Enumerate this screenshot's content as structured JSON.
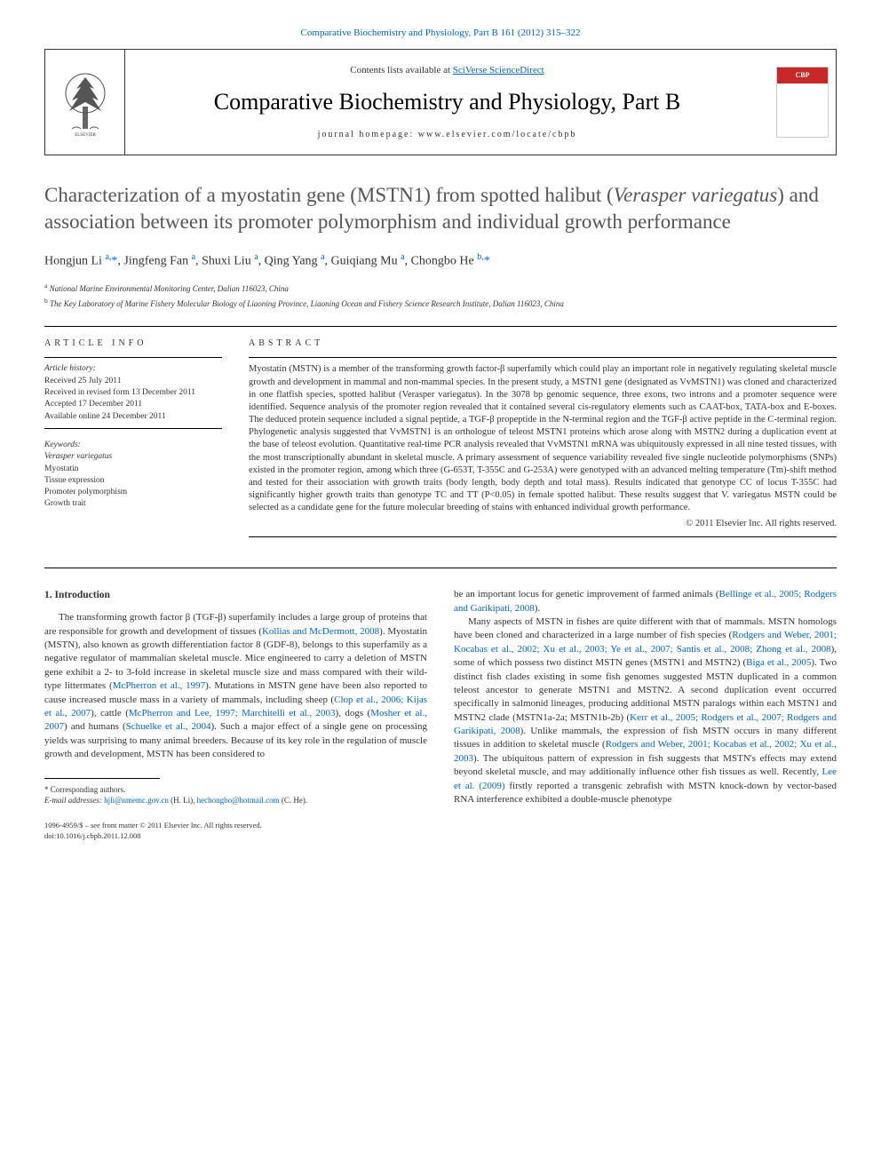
{
  "header": {
    "citation": "Comparative Biochemistry and Physiology, Part B 161 (2012) 315–322",
    "contentsLine": "Contents lists available at ",
    "contentsLink": "SciVerse ScienceDirect",
    "journalTitle": "Comparative Biochemistry and Physiology, Part B",
    "homepage": "journal homepage: www.elsevier.com/locate/cbpb",
    "coverLabel": "CBP"
  },
  "article": {
    "titlePre": "Characterization of a myostatin gene (MSTN1) from spotted halibut (",
    "titleItalic": "Verasper variegatus",
    "titlePost": ") and association between its promoter polymorphism and individual growth performance",
    "authorsHtml": "Hongjun Li <sup>a,</sup><span class='star'>*</span>, Jingfeng Fan <sup>a</sup>, Shuxi Liu <sup>a</sup>, Qing Yang <sup>a</sup>, Guiqiang Mu <sup>a</sup>, Chongbo He <sup>b,</sup><span class='star'>*</span>",
    "affiliations": [
      {
        "sup": "a",
        "text": "National Marine Environmental Monitoring Center, Dalian 116023, China"
      },
      {
        "sup": "b",
        "text": "The Key Laboratory of Marine Fishery Molecular Biology of Liaoning Province, Liaoning Ocean and Fishery Science Research Institute, Dalian 116023, China"
      }
    ]
  },
  "info": {
    "infoLabel": "ARTICLE INFO",
    "abstractLabel": "ABSTRACT",
    "historyLabel": "Article history:",
    "history": [
      "Received 25 July 2011",
      "Received in revised form 13 December 2011",
      "Accepted 17 December 2011",
      "Available online 24 December 2011"
    ],
    "keywordsLabel": "Keywords:",
    "keywords": [
      "Verasper variegatus",
      "Myostatin",
      "Tissue expression",
      "Promoter polymorphism",
      "Growth trait"
    ]
  },
  "abstract": {
    "text": "Myostatin (MSTN) is a member of the transforming growth factor-β superfamily which could play an important role in negatively regulating skeletal muscle growth and development in mammal and non-mammal species. In the present study, a MSTN1 gene (designated as VvMSTN1) was cloned and characterized in one flatfish species, spotted halibut (Verasper variegatus). In the 3078 bp genomic sequence, three exons, two introns and a promoter sequence were identified. Sequence analysis of the promoter region revealed that it contained several cis-regulatory elements such as CAAT-box, TATA-box and E-boxes. The deduced protein sequence included a signal peptide, a TGF-β propeptide in the N-terminal region and the TGF-β active peptide in the C-terminal region. Phylogenetic analysis suggested that VvMSTN1 is an orthologue of teleost MSTN1 proteins which arose along with MSTN2 during a duplication event at the base of teleost evolution. Quantitative real-time PCR analysis revealed that VvMSTN1 mRNA was ubiquitously expressed in all nine tested tissues, with the most transcriptionally abundant in skeletal muscle. A primary assessment of sequence variability revealed five single nucleotide polymorphisms (SNPs) existed in the promoter region, among which three (G-653T, T-355C and G-253A) were genotyped with an advanced melting temperature (Tm)-shift method and tested for their association with growth traits (body length, body depth and total mass). Results indicated that genotype CC of locus T-355C had significantly higher growth traits than genotype TC and TT (P<0.05) in female spotted halibut. These results suggest that V. variegatus MSTN could be selected as a candidate gene for the future molecular breeding of stains with enhanced individual growth performance.",
    "copyright": "© 2011 Elsevier Inc. All rights reserved."
  },
  "intro": {
    "heading": "1. Introduction",
    "p1": "The transforming growth factor β (TGF-β) superfamily includes a large group of proteins that are responsible for growth and development of tissues (<a href='#'>Kollias and McDermott, 2008</a>). Myostatin (MSTN), also known as growth differentiation factor 8 (GDF-8), belongs to this superfamily as a negative regulator of mammalian skeletal muscle. Mice engineered to carry a deletion of MSTN gene exhibit a 2- to 3-fold increase in skeletal muscle size and mass compared with their wild-type littermates (<a href='#'>McPherron et al., 1997</a>). Mutations in MSTN gene have been also reported to cause increased muscle mass in a variety of mammals, including sheep (<a href='#'>Clop et al., 2006; Kijas et al., 2007</a>), cattle (<a href='#'>McPherron and Lee, 1997; Marchitelli et al., 2003</a>), dogs (<a href='#'>Mosher et al., 2007</a>) and humans (<a href='#'>Schuelke et al., 2004</a>). Such a major effect of a single gene on processing yields was surprising to many animal breeders. Because of its key role in the regulation of muscle growth and development, MSTN has been considered to",
    "p1b": "be an important locus for genetic improvement of farmed animals (<a href='#'>Bellinge et al., 2005; Rodgers and Garikipati, 2008</a>).",
    "p2": "Many aspects of MSTN in fishes are quite different with that of mammals. MSTN homologs have been cloned and characterized in a large number of fish species (<a href='#'>Rodgers and Weber, 2001; Kocabas et al., 2002; Xu et al., 2003; Ye et al., 2007; Santis et al., 2008; Zhong et al., 2008</a>), some of which possess two distinct MSTN genes (MSTN1 and MSTN2) (<a href='#'>Biga et al., 2005</a>). Two distinct fish clades existing in some fish genomes suggested MSTN duplicated in a common teleost ancestor to generate MSTN1 and MSTN2. A second duplication event occurred specifically in salmonid lineages, producing additional MSTN paralogs within each MSTN1 and MSTN2 clade (MSTN1a-2a; MSTN1b-2b) (<a href='#'>Kerr et al., 2005; Rodgers et al., 2007; Rodgers and Garikipati, 2008</a>). Unlike mammals, the expression of fish MSTN occurs in many different tissues in addition to skeletal muscle (<a href='#'>Rodgers and Weber, 2001; Kocabas et al., 2002; Xu et al., 2003</a>). The ubiquitous pattern of expression in fish suggests that MSTN's effects may extend beyond skeletal muscle, and may additionally influence other fish tissues as well. Recently, <a href='#'>Lee et al. (2009)</a> firstly reported a transgenic zebrafish with MSTN knock-down by vector-based RNA interference exhibited a double-muscle phenotype"
  },
  "footer": {
    "corresponding": "* Corresponding authors.",
    "emailLabel": "E-mail addresses: ",
    "email1": "hjli@nmemc.gov.cn",
    "email1Suffix": " (H. Li), ",
    "email2": "hechongbo@hotmail.com",
    "email2Suffix": " (C. He).",
    "copyright1": "1096-4959/$ – see front matter © 2011 Elsevier Inc. All rights reserved.",
    "doi": "doi:10.1016/j.cbpb.2011.12.008"
  }
}
